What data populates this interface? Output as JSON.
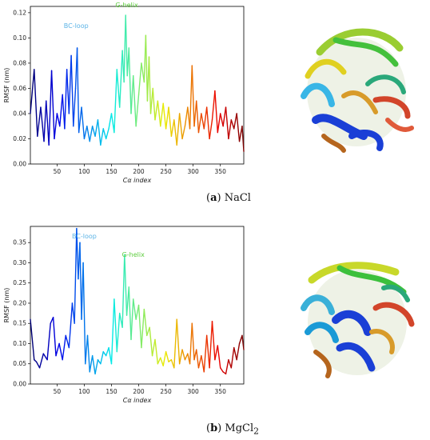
{
  "chart_data": [
    {
      "type": "line",
      "caption": {
        "label": "a",
        "text": "NaCl"
      },
      "ylabel": "RMSF (nm)",
      "xlabel": "Cα index",
      "xlim": [
        1,
        393
      ],
      "ylim": [
        0,
        0.125
      ],
      "xticks": [
        50,
        100,
        150,
        200,
        250,
        300,
        350
      ],
      "yticks": [
        0.0,
        0.02,
        0.04,
        0.06,
        0.08,
        0.1,
        0.12
      ],
      "ytick_labels": [
        "0.00",
        "0.02",
        "0.04",
        "0.06",
        "0.08",
        "0.10",
        "0.12"
      ],
      "annotations": [
        {
          "text": "BC-loop",
          "x": 85,
          "y": 0.108,
          "color": "#5bb3e6"
        },
        {
          "text": "G-helix",
          "x": 178,
          "y": 0.1245,
          "color": "#5ccc3c"
        }
      ],
      "x": [
        1,
        8,
        14,
        20,
        26,
        30,
        35,
        40,
        45,
        50,
        55,
        60,
        64,
        68,
        72,
        76,
        80,
        84,
        87,
        90,
        95,
        100,
        105,
        110,
        115,
        120,
        125,
        130,
        135,
        140,
        145,
        150,
        155,
        160,
        165,
        170,
        173,
        176,
        179,
        182,
        186,
        190,
        195,
        200,
        205,
        210,
        213,
        216,
        219,
        222,
        226,
        230,
        235,
        240,
        245,
        250,
        255,
        260,
        265,
        270,
        275,
        280,
        285,
        290,
        294,
        298,
        302,
        306,
        310,
        315,
        320,
        325,
        330,
        335,
        340,
        345,
        350,
        355,
        360,
        365,
        370,
        375,
        380,
        385,
        390,
        393
      ],
      "values": [
        0.04,
        0.075,
        0.022,
        0.045,
        0.018,
        0.05,
        0.015,
        0.074,
        0.02,
        0.04,
        0.03,
        0.055,
        0.028,
        0.075,
        0.04,
        0.086,
        0.03,
        0.06,
        0.092,
        0.025,
        0.045,
        0.02,
        0.03,
        0.018,
        0.03,
        0.022,
        0.035,
        0.015,
        0.028,
        0.02,
        0.028,
        0.04,
        0.025,
        0.075,
        0.045,
        0.09,
        0.065,
        0.118,
        0.07,
        0.092,
        0.04,
        0.07,
        0.03,
        0.055,
        0.08,
        0.065,
        0.102,
        0.05,
        0.085,
        0.04,
        0.06,
        0.035,
        0.05,
        0.03,
        0.048,
        0.028,
        0.045,
        0.022,
        0.035,
        0.015,
        0.04,
        0.02,
        0.03,
        0.045,
        0.028,
        0.078,
        0.03,
        0.05,
        0.025,
        0.04,
        0.028,
        0.045,
        0.02,
        0.035,
        0.058,
        0.025,
        0.04,
        0.03,
        0.045,
        0.02,
        0.035,
        0.028,
        0.04,
        0.018,
        0.03,
        0.01
      ]
    },
    {
      "type": "line",
      "caption": {
        "label": "b",
        "text": "MgCl",
        "sub": "2"
      },
      "ylabel": "RMSF (nm)",
      "xlabel": "Cα index",
      "xlim": [
        1,
        393
      ],
      "ylim": [
        0,
        0.39
      ],
      "xticks": [
        50,
        100,
        150,
        200,
        250,
        300,
        350
      ],
      "yticks": [
        0.0,
        0.05,
        0.1,
        0.15,
        0.2,
        0.25,
        0.3,
        0.35
      ],
      "ytick_labels": [
        "0.00",
        "0.05",
        "0.10",
        "0.15",
        "0.20",
        "0.25",
        "0.30",
        "0.35"
      ],
      "annotations": [
        {
          "text": "BC-loop",
          "x": 100,
          "y": 0.36,
          "color": "#5bb3e6"
        },
        {
          "text": "G-helix",
          "x": 190,
          "y": 0.315,
          "color": "#5ccc3c"
        }
      ],
      "x": [
        1,
        8,
        12,
        18,
        25,
        32,
        38,
        43,
        48,
        54,
        60,
        66,
        72,
        78,
        82,
        86,
        89,
        92,
        95,
        98,
        102,
        106,
        110,
        115,
        120,
        125,
        130,
        135,
        140,
        145,
        150,
        155,
        160,
        165,
        170,
        174,
        178,
        182,
        186,
        190,
        195,
        200,
        205,
        210,
        215,
        220,
        225,
        230,
        235,
        240,
        245,
        250,
        255,
        260,
        265,
        270,
        275,
        280,
        285,
        290,
        294,
        298,
        302,
        306,
        310,
        315,
        320,
        325,
        330,
        335,
        340,
        345,
        350,
        355,
        360,
        365,
        370,
        375,
        380,
        385,
        390,
        393
      ],
      "values": [
        0.16,
        0.06,
        0.055,
        0.04,
        0.075,
        0.06,
        0.15,
        0.165,
        0.07,
        0.1,
        0.06,
        0.12,
        0.09,
        0.2,
        0.15,
        0.385,
        0.26,
        0.35,
        0.16,
        0.3,
        0.05,
        0.12,
        0.03,
        0.07,
        0.025,
        0.06,
        0.05,
        0.08,
        0.07,
        0.09,
        0.05,
        0.21,
        0.08,
        0.175,
        0.14,
        0.32,
        0.17,
        0.24,
        0.11,
        0.21,
        0.16,
        0.195,
        0.09,
        0.185,
        0.12,
        0.14,
        0.07,
        0.11,
        0.05,
        0.065,
        0.045,
        0.08,
        0.055,
        0.06,
        0.04,
        0.16,
        0.05,
        0.085,
        0.06,
        0.075,
        0.05,
        0.15,
        0.06,
        0.085,
        0.04,
        0.07,
        0.03,
        0.12,
        0.04,
        0.155,
        0.06,
        0.095,
        0.04,
        0.03,
        0.025,
        0.06,
        0.04,
        0.09,
        0.06,
        0.1,
        0.12,
        0.085
      ]
    }
  ]
}
